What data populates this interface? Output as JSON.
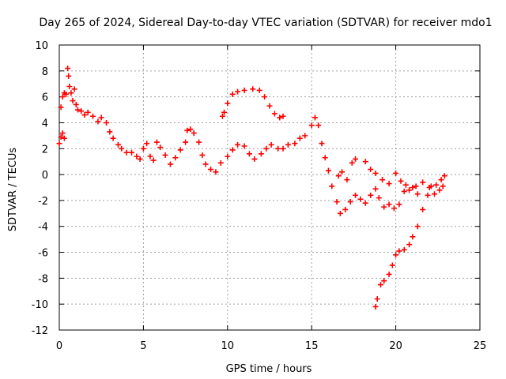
{
  "chart_data": {
    "type": "scatter",
    "title": "Day 265 of 2024, Sidereal Day-to-day VTEC variation (SDTVAR) for receiver mdo1",
    "xlabel": "GPS time / hours",
    "ylabel": "SDTVAR / TECUs",
    "xlim": [
      0,
      25
    ],
    "ylim": [
      -12,
      10
    ],
    "xticks": [
      0,
      5,
      10,
      15,
      20,
      25
    ],
    "yticks": [
      -12,
      -10,
      -8,
      -6,
      -4,
      -2,
      0,
      2,
      4,
      6,
      8,
      10
    ],
    "grid": true,
    "marker": "+",
    "color": "#ff0000",
    "series": [
      {
        "points": [
          [
            0.0,
            2.4
          ],
          [
            0.1,
            2.9
          ],
          [
            0.2,
            3.2
          ],
          [
            0.3,
            2.8
          ],
          [
            0.1,
            5.2
          ],
          [
            0.2,
            6.0
          ],
          [
            0.3,
            6.3
          ],
          [
            0.4,
            6.2
          ],
          [
            0.5,
            8.2
          ],
          [
            0.55,
            7.6
          ],
          [
            0.6,
            6.8
          ],
          [
            0.7,
            6.3
          ],
          [
            0.8,
            5.7
          ],
          [
            0.9,
            6.6
          ],
          [
            1.0,
            5.4
          ],
          [
            1.1,
            5.0
          ],
          [
            1.3,
            4.9
          ],
          [
            1.5,
            4.6
          ],
          [
            1.7,
            4.8
          ],
          [
            2.0,
            4.5
          ],
          [
            2.3,
            4.1
          ],
          [
            2.5,
            4.4
          ],
          [
            2.8,
            4.0
          ],
          [
            3.0,
            3.3
          ],
          [
            3.2,
            2.8
          ],
          [
            3.5,
            2.3
          ],
          [
            3.7,
            2.0
          ],
          [
            4.0,
            1.7
          ],
          [
            4.3,
            1.7
          ],
          [
            4.6,
            1.4
          ],
          [
            4.8,
            1.2
          ],
          [
            5.0,
            2.0
          ],
          [
            5.2,
            2.4
          ],
          [
            5.4,
            1.4
          ],
          [
            5.6,
            1.1
          ],
          [
            5.8,
            2.5
          ],
          [
            6.0,
            2.1
          ],
          [
            6.3,
            1.5
          ],
          [
            6.6,
            0.8
          ],
          [
            6.9,
            1.3
          ],
          [
            7.2,
            1.9
          ],
          [
            7.5,
            2.5
          ],
          [
            7.6,
            3.4
          ],
          [
            7.8,
            3.5
          ],
          [
            8.0,
            3.2
          ],
          [
            8.3,
            2.5
          ],
          [
            8.5,
            1.5
          ],
          [
            8.7,
            0.8
          ],
          [
            9.0,
            0.4
          ],
          [
            9.3,
            0.2
          ],
          [
            9.6,
            0.9
          ],
          [
            10.0,
            1.4
          ],
          [
            10.3,
            1.9
          ],
          [
            10.6,
            2.3
          ],
          [
            11.0,
            2.2
          ],
          [
            11.3,
            1.6
          ],
          [
            11.6,
            1.2
          ],
          [
            12.0,
            1.6
          ],
          [
            12.3,
            2.0
          ],
          [
            12.6,
            2.3
          ],
          [
            13.0,
            2.0
          ],
          [
            13.3,
            2.0
          ],
          [
            13.6,
            2.3
          ],
          [
            14.0,
            2.4
          ],
          [
            14.3,
            2.8
          ],
          [
            14.6,
            3.0
          ],
          [
            15.0,
            3.8
          ],
          [
            15.2,
            4.4
          ],
          [
            15.4,
            3.8
          ],
          [
            15.6,
            2.4
          ],
          [
            15.8,
            1.3
          ],
          [
            16.0,
            0.3
          ],
          [
            16.2,
            -0.9
          ],
          [
            16.5,
            -2.1
          ],
          [
            16.7,
            -3.0
          ],
          [
            17.0,
            -2.7
          ],
          [
            17.3,
            -2.1
          ],
          [
            17.6,
            -1.6
          ],
          [
            17.9,
            -1.9
          ],
          [
            18.2,
            -2.2
          ],
          [
            18.5,
            -1.6
          ],
          [
            18.8,
            -1.1
          ],
          [
            19.0,
            -1.8
          ],
          [
            19.3,
            -2.5
          ],
          [
            19.6,
            -2.3
          ],
          [
            19.9,
            -2.6
          ],
          [
            20.2,
            -2.3
          ],
          [
            20.5,
            -1.3
          ],
          [
            20.8,
            -1.2
          ],
          [
            21.2,
            -0.9
          ],
          [
            21.6,
            -0.6
          ],
          [
            22.0,
            -1.0
          ],
          [
            22.3,
            -1.5
          ],
          [
            22.6,
            -1.2
          ],
          [
            22.8,
            -0.9
          ],
          [
            16.6,
            -0.1
          ],
          [
            16.8,
            0.2
          ],
          [
            17.1,
            -0.4
          ],
          [
            17.4,
            0.9
          ],
          [
            17.6,
            1.2
          ],
          [
            18.2,
            1.0
          ],
          [
            18.5,
            0.4
          ],
          [
            18.8,
            0.1
          ],
          [
            19.2,
            -0.4
          ],
          [
            19.6,
            -0.7
          ],
          [
            20.0,
            0.1
          ],
          [
            20.3,
            -0.5
          ],
          [
            20.6,
            -0.8
          ],
          [
            21.0,
            -1.0
          ],
          [
            21.3,
            -1.5
          ],
          [
            9.7,
            4.5
          ],
          [
            9.8,
            4.8
          ],
          [
            10.0,
            5.5
          ],
          [
            10.3,
            6.2
          ],
          [
            10.6,
            6.4
          ],
          [
            11.0,
            6.5
          ],
          [
            11.5,
            6.6
          ],
          [
            11.9,
            6.5
          ],
          [
            12.2,
            6.0
          ],
          [
            12.5,
            5.3
          ],
          [
            12.8,
            4.7
          ],
          [
            13.1,
            4.4
          ],
          [
            13.3,
            4.5
          ],
          [
            18.8,
            -10.2
          ],
          [
            18.9,
            -9.6
          ],
          [
            19.1,
            -8.5
          ],
          [
            19.3,
            -8.2
          ],
          [
            19.6,
            -7.7
          ],
          [
            19.8,
            -7.0
          ],
          [
            20.0,
            -6.2
          ],
          [
            20.2,
            -5.9
          ],
          [
            20.5,
            -5.8
          ],
          [
            20.8,
            -5.4
          ],
          [
            21.0,
            -4.8
          ],
          [
            21.3,
            -4.0
          ],
          [
            21.6,
            -2.7
          ],
          [
            21.9,
            -1.6
          ],
          [
            22.1,
            -0.9
          ],
          [
            22.4,
            -0.8
          ],
          [
            22.7,
            -0.4
          ],
          [
            22.9,
            -0.1
          ]
        ]
      }
    ]
  }
}
